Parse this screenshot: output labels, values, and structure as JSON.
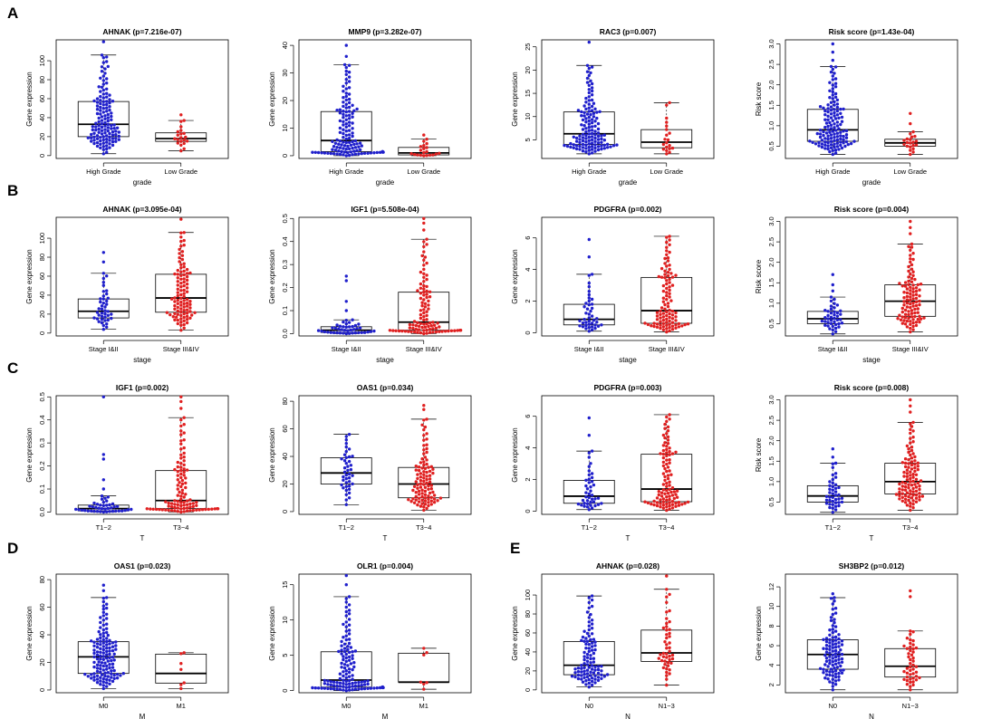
{
  "figure": {
    "row_labels": [
      "A",
      "B",
      "C",
      "D",
      "E"
    ]
  },
  "colors": {
    "group1": "#2020cc",
    "group2": "#e02020",
    "box": "#000000"
  },
  "chart_data": [
    {
      "type": "box-swarm",
      "title": "AHNAK (p=7.216e-07)",
      "xlabel": "grade",
      "ylabel": "Gene expression",
      "categories": [
        "High Grade",
        "Low Grade"
      ],
      "ylim": [
        -3,
        122
      ],
      "yticks": [
        0,
        20,
        40,
        60,
        80,
        100
      ],
      "series": [
        {
          "name": "High Grade",
          "color": "blue",
          "n": 130,
          "min": 2,
          "q1": 20,
          "median": 33,
          "q3": 57,
          "max": 106,
          "outliers": [
            120
          ]
        },
        {
          "name": "Low Grade",
          "color": "red",
          "n": 18,
          "min": 5,
          "q1": 15,
          "median": 18,
          "q3": 24,
          "max": 37,
          "outliers": [
            43
          ]
        }
      ]
    },
    {
      "type": "box-swarm",
      "title": "MMP9 (p=3.282e-07)",
      "xlabel": "grade",
      "ylabel": "Gene expression",
      "categories": [
        "High Grade",
        "Low Grade"
      ],
      "ylim": [
        -1,
        42
      ],
      "yticks": [
        0,
        10,
        20,
        30,
        40
      ],
      "series": [
        {
          "name": "High Grade",
          "color": "blue",
          "n": 130,
          "min": 0,
          "q1": 1.5,
          "median": 5.5,
          "q3": 16,
          "max": 33,
          "outliers": [
            36,
            40
          ]
        },
        {
          "name": "Low Grade",
          "color": "red",
          "n": 18,
          "min": 0,
          "q1": 0.3,
          "median": 1,
          "q3": 3,
          "max": 6,
          "outliers": [
            7.5
          ]
        }
      ]
    },
    {
      "type": "box-swarm",
      "title": "RAC3 (p=0.007)",
      "xlabel": "grade",
      "ylabel": "Gene expression",
      "categories": [
        "High Grade",
        "Low Grade"
      ],
      "ylim": [
        1,
        26.5
      ],
      "yticks": [
        5,
        10,
        15,
        20,
        25
      ],
      "series": [
        {
          "name": "High Grade",
          "color": "blue",
          "n": 130,
          "min": 2,
          "q1": 4,
          "median": 6.3,
          "q3": 11,
          "max": 21,
          "outliers": [
            26
          ]
        },
        {
          "name": "Low Grade",
          "color": "red",
          "n": 18,
          "min": 2,
          "q1": 3.3,
          "median": 4.5,
          "q3": 7.2,
          "max": 13,
          "outliers": []
        }
      ]
    },
    {
      "type": "box-swarm",
      "title": "Risk score (p=1.43e-04)",
      "xlabel": "grade",
      "ylabel": "Risk score",
      "categories": [
        "High Grade",
        "Low Grade"
      ],
      "ylim": [
        0.2,
        3.1
      ],
      "yticks": [
        0.5,
        1.0,
        1.5,
        2.0,
        2.5,
        3.0
      ],
      "series": [
        {
          "name": "High Grade",
          "color": "blue",
          "n": 130,
          "min": 0.3,
          "q1": 0.62,
          "median": 0.9,
          "q3": 1.4,
          "max": 2.45,
          "outliers": [
            2.6,
            2.8,
            3.0
          ]
        },
        {
          "name": "Low Grade",
          "color": "red",
          "n": 18,
          "min": 0.3,
          "q1": 0.5,
          "median": 0.58,
          "q3": 0.67,
          "max": 0.85,
          "outliers": [
            1.05,
            1.3
          ]
        }
      ]
    },
    {
      "type": "box-swarm",
      "title": "AHNAK (p=3.095e-04)",
      "xlabel": "stage",
      "ylabel": "Gene expression",
      "categories": [
        "Stage I&II",
        "Stage III&IV"
      ],
      "ylim": [
        -3,
        122
      ],
      "yticks": [
        0,
        20,
        40,
        60,
        80,
        100
      ],
      "series": [
        {
          "name": "Stage I&II",
          "color": "blue",
          "n": 40,
          "min": 4,
          "q1": 16,
          "median": 23,
          "q3": 36,
          "max": 63,
          "outliers": [
            75,
            85
          ]
        },
        {
          "name": "Stage III&IV",
          "color": "red",
          "n": 100,
          "min": 3,
          "q1": 22,
          "median": 37,
          "q3": 62,
          "max": 106,
          "outliers": [
            120
          ]
        }
      ]
    },
    {
      "type": "box-swarm",
      "title": "IGF1 (p=5.508e-04)",
      "xlabel": "stage",
      "ylabel": "Gene expression",
      "categories": [
        "Stage I&II",
        "Stage III&IV"
      ],
      "ylim": [
        -0.01,
        0.505
      ],
      "yticks": [
        0.0,
        0.1,
        0.2,
        0.3,
        0.4,
        0.5
      ],
      "series": [
        {
          "name": "Stage I&II",
          "color": "blue",
          "n": 40,
          "min": 0,
          "q1": 0.005,
          "median": 0.015,
          "q3": 0.03,
          "max": 0.06,
          "outliers": [
            0.1,
            0.14,
            0.23,
            0.25
          ]
        },
        {
          "name": "Stage III&IV",
          "color": "red",
          "n": 100,
          "min": 0,
          "q1": 0.015,
          "median": 0.05,
          "q3": 0.18,
          "max": 0.41,
          "outliers": [
            0.45,
            0.48,
            0.5
          ]
        }
      ]
    },
    {
      "type": "box-swarm",
      "title": "PDGFRA (p=0.002)",
      "xlabel": "stage",
      "ylabel": "Gene expression",
      "categories": [
        "Stage I&II",
        "Stage III&IV"
      ],
      "ylim": [
        -0.2,
        7.3
      ],
      "yticks": [
        0,
        2,
        4,
        6
      ],
      "series": [
        {
          "name": "Stage I&II",
          "color": "blue",
          "n": 40,
          "min": 0.1,
          "q1": 0.5,
          "median": 0.85,
          "q3": 1.8,
          "max": 3.7,
          "outliers": [
            4.8,
            5.9
          ]
        },
        {
          "name": "Stage III&IV",
          "color": "red",
          "n": 100,
          "min": 0.05,
          "q1": 0.6,
          "median": 1.4,
          "q3": 3.5,
          "max": 6.1,
          "outliers": []
        }
      ]
    },
    {
      "type": "box-swarm",
      "title": "Risk score (p=0.004)",
      "xlabel": "stage",
      "ylabel": "Risk score",
      "categories": [
        "Stage I&II",
        "Stage III&IV"
      ],
      "ylim": [
        0.2,
        3.1
      ],
      "yticks": [
        0.5,
        1.0,
        1.5,
        2.0,
        2.5,
        3.0
      ],
      "series": [
        {
          "name": "Stage I&II",
          "color": "blue",
          "n": 40,
          "min": 0.25,
          "q1": 0.5,
          "median": 0.62,
          "q3": 0.8,
          "max": 1.15,
          "outliers": [
            1.3,
            1.45,
            1.7
          ]
        },
        {
          "name": "Stage III&IV",
          "color": "red",
          "n": 100,
          "min": 0.3,
          "q1": 0.68,
          "median": 1.05,
          "q3": 1.45,
          "max": 2.45,
          "outliers": [
            2.7,
            2.85,
            3.0
          ]
        }
      ]
    },
    {
      "type": "box-swarm",
      "title": "IGF1 (p=0.002)",
      "xlabel": "T",
      "ylabel": "Gene expression",
      "categories": [
        "T1−2",
        "T3−4"
      ],
      "ylim": [
        -0.01,
        0.505
      ],
      "yticks": [
        0.0,
        0.1,
        0.2,
        0.3,
        0.4,
        0.5
      ],
      "series": [
        {
          "name": "T1−2",
          "color": "blue",
          "n": 40,
          "min": 0,
          "q1": 0.005,
          "median": 0.015,
          "q3": 0.03,
          "max": 0.07,
          "outliers": [
            0.1,
            0.14,
            0.23,
            0.25,
            0.5
          ]
        },
        {
          "name": "T3−4",
          "color": "red",
          "n": 100,
          "min": 0,
          "q1": 0.015,
          "median": 0.05,
          "q3": 0.18,
          "max": 0.41,
          "outliers": [
            0.45,
            0.48,
            0.5
          ]
        }
      ]
    },
    {
      "type": "box-swarm",
      "title": "OAS1 (p=0.034)",
      "xlabel": "T",
      "ylabel": "Gene expression",
      "categories": [
        "T1−2",
        "T3−4"
      ],
      "ylim": [
        -2,
        84
      ],
      "yticks": [
        0,
        20,
        40,
        60,
        80
      ],
      "series": [
        {
          "name": "T1−2",
          "color": "blue",
          "n": 40,
          "min": 5,
          "q1": 20,
          "median": 28,
          "q3": 39,
          "max": 56,
          "outliers": []
        },
        {
          "name": "T3−4",
          "color": "red",
          "n": 100,
          "min": 1,
          "q1": 10,
          "median": 20,
          "q3": 32,
          "max": 67,
          "outliers": [
            74,
            77
          ]
        }
      ]
    },
    {
      "type": "box-swarm",
      "title": "PDGFRA (p=0.003)",
      "xlabel": "T",
      "ylabel": "Gene expression",
      "categories": [
        "T1−2",
        "T3−4"
      ],
      "ylim": [
        -0.2,
        7.3
      ],
      "yticks": [
        0,
        2,
        4,
        6
      ],
      "series": [
        {
          "name": "T1−2",
          "color": "blue",
          "n": 40,
          "min": 0.1,
          "q1": 0.5,
          "median": 0.95,
          "q3": 1.95,
          "max": 3.8,
          "outliers": [
            4.8,
            5.9
          ]
        },
        {
          "name": "T3−4",
          "color": "red",
          "n": 100,
          "min": 0.05,
          "q1": 0.6,
          "median": 1.4,
          "q3": 3.6,
          "max": 6.1,
          "outliers": []
        }
      ]
    },
    {
      "type": "box-swarm",
      "title": "Risk score (p=0.008)",
      "xlabel": "T",
      "ylabel": "Risk score",
      "categories": [
        "T1−2",
        "T3−4"
      ],
      "ylim": [
        0.2,
        3.1
      ],
      "yticks": [
        0.5,
        1.0,
        1.5,
        2.0,
        2.5,
        3.0
      ],
      "series": [
        {
          "name": "T1−2",
          "color": "blue",
          "n": 40,
          "min": 0.25,
          "q1": 0.5,
          "median": 0.65,
          "q3": 0.9,
          "max": 1.45,
          "outliers": [
            1.6,
            1.8
          ]
        },
        {
          "name": "T3−4",
          "color": "red",
          "n": 100,
          "min": 0.3,
          "q1": 0.7,
          "median": 1.0,
          "q3": 1.45,
          "max": 2.45,
          "outliers": [
            2.7,
            2.85,
            3.0
          ]
        }
      ]
    },
    {
      "type": "box-swarm",
      "title": "OAS1 (p=0.023)",
      "xlabel": "M",
      "ylabel": "Gene expression",
      "categories": [
        "M0",
        "M1"
      ],
      "ylim": [
        -2,
        84
      ],
      "yticks": [
        0,
        20,
        40,
        60,
        80
      ],
      "series": [
        {
          "name": "M0",
          "color": "blue",
          "n": 130,
          "min": 1,
          "q1": 12,
          "median": 24,
          "q3": 35,
          "max": 67,
          "outliers": [
            72,
            76
          ]
        },
        {
          "name": "M1",
          "color": "red",
          "n": 5,
          "min": 1,
          "q1": 5,
          "median": 12,
          "q3": 26,
          "max": 27,
          "outliers": []
        }
      ]
    },
    {
      "type": "box-swarm",
      "title": "OLR1 (p=0.004)",
      "xlabel": "M",
      "ylabel": "Gene expression",
      "categories": [
        "M0",
        "M1"
      ],
      "ylim": [
        -0.3,
        16.5
      ],
      "yticks": [
        0,
        5,
        10,
        15
      ],
      "series": [
        {
          "name": "M0",
          "color": "blue",
          "n": 130,
          "min": 0,
          "q1": 0.5,
          "median": 1.5,
          "q3": 5.5,
          "max": 13.3,
          "outliers": [
            15,
            16.3
          ]
        },
        {
          "name": "M1",
          "color": "red",
          "n": 5,
          "min": 0.2,
          "q1": 1.2,
          "median": 1.2,
          "q3": 5.3,
          "max": 6,
          "outliers": []
        }
      ]
    },
    {
      "type": "box-swarm",
      "title": "AHNAK (p=0.028)",
      "xlabel": "N",
      "ylabel": "Gene expression",
      "categories": [
        "N0",
        "N1−3"
      ],
      "ylim": [
        -3,
        122
      ],
      "yticks": [
        0,
        20,
        40,
        60,
        80,
        100
      ],
      "series": [
        {
          "name": "N0",
          "color": "blue",
          "n": 100,
          "min": 3,
          "q1": 16,
          "median": 26,
          "q3": 51,
          "max": 99,
          "outliers": []
        },
        {
          "name": "N1−3",
          "color": "red",
          "n": 45,
          "min": 5,
          "q1": 30,
          "median": 39,
          "q3": 63,
          "max": 106,
          "outliers": [
            120
          ]
        }
      ]
    },
    {
      "type": "box-swarm",
      "title": "SH3BP2 (p=0.012)",
      "xlabel": "N",
      "ylabel": "Gene expression",
      "categories": [
        "N0",
        "N1−3"
      ],
      "ylim": [
        1.2,
        13.3
      ],
      "yticks": [
        2,
        4,
        6,
        8,
        10,
        12
      ],
      "series": [
        {
          "name": "N0",
          "color": "blue",
          "n": 100,
          "min": 1.5,
          "q1": 3.6,
          "median": 5.1,
          "q3": 6.6,
          "max": 10.9,
          "outliers": [
            11.3
          ]
        },
        {
          "name": "N1−3",
          "color": "red",
          "n": 45,
          "min": 1.5,
          "q1": 2.8,
          "median": 3.9,
          "q3": 5.7,
          "max": 7.5,
          "outliers": [
            11,
            11.6
          ]
        }
      ]
    }
  ]
}
